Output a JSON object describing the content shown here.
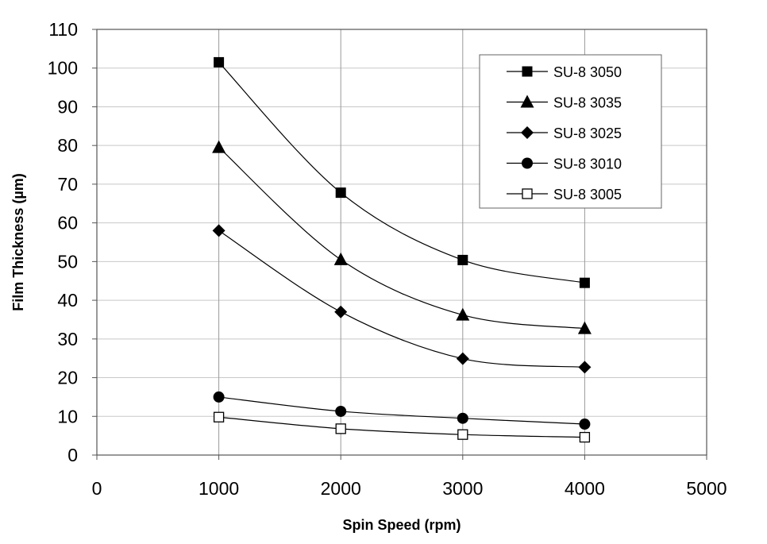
{
  "chart_data": {
    "type": "line",
    "title": "",
    "xlabel": "Spin Speed (rpm)",
    "ylabel": "Film Thickness (µm)",
    "xlim": [
      0,
      5000
    ],
    "ylim": [
      0,
      110
    ],
    "xticks": [
      0,
      1000,
      2000,
      3000,
      4000,
      5000
    ],
    "yticks": [
      0,
      10,
      20,
      30,
      40,
      50,
      60,
      70,
      80,
      90,
      100,
      110
    ],
    "grid": true,
    "legend_position": "top-right",
    "x": [
      1000,
      2000,
      3000,
      4000
    ],
    "series": [
      {
        "name": "SU-8 3050",
        "marker": "square-filled",
        "values": [
          101.5,
          67.8,
          50.4,
          44.5
        ]
      },
      {
        "name": "SU-8 3035",
        "marker": "triangle-filled",
        "values": [
          79.5,
          50.5,
          36.2,
          32.7
        ]
      },
      {
        "name": "SU-8 3025",
        "marker": "diamond-filled",
        "values": [
          58.0,
          37.0,
          24.9,
          22.7
        ]
      },
      {
        "name": "SU-8 3010",
        "marker": "circle-filled",
        "values": [
          15.0,
          11.3,
          9.5,
          8.0
        ]
      },
      {
        "name": "SU-8 3005",
        "marker": "square-open",
        "values": [
          9.8,
          6.8,
          5.3,
          4.6
        ]
      }
    ]
  }
}
